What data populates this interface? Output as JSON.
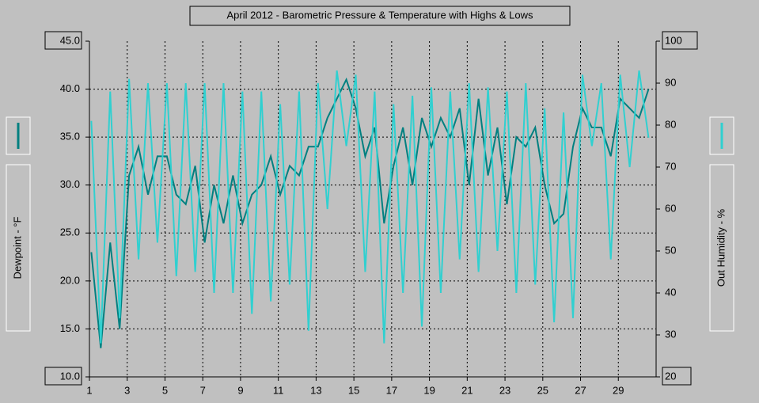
{
  "chart_data": {
    "type": "line",
    "title": "April 2012 - Barometric Pressure & Temperature with Highs & Lows",
    "ylabel": "Dewpoint - °F",
    "y2label": "Out Humidity - %",
    "xlim": [
      1,
      31
    ],
    "xticks": [
      1,
      3,
      5,
      7,
      9,
      11,
      13,
      15,
      17,
      19,
      21,
      23,
      25,
      27,
      29
    ],
    "ylim": [
      10,
      45
    ],
    "yticks": [
      {
        "value": 10,
        "label": "10.0"
      },
      {
        "value": 15,
        "label": "15.0"
      },
      {
        "value": 20,
        "label": "20.0"
      },
      {
        "value": 25,
        "label": "25.0"
      },
      {
        "value": 30,
        "label": "30.0"
      },
      {
        "value": 35,
        "label": "35.0"
      },
      {
        "value": 40,
        "label": "40.0"
      },
      {
        "value": 45,
        "label": "45.0"
      }
    ],
    "y2lim": [
      20,
      100
    ],
    "y2ticks": [
      20,
      30,
      40,
      50,
      60,
      70,
      80,
      90,
      100
    ],
    "grid": true,
    "x": [
      1.1,
      1.6,
      2.1,
      2.6,
      3.1,
      3.6,
      4.1,
      4.6,
      5.1,
      5.6,
      6.1,
      6.6,
      7.1,
      7.6,
      8.1,
      8.6,
      9.1,
      9.6,
      10.1,
      10.6,
      11.1,
      11.6,
      12.1,
      12.6,
      13.1,
      13.6,
      14.1,
      14.6,
      15.1,
      15.6,
      16.1,
      16.6,
      17.1,
      17.6,
      18.1,
      18.6,
      19.1,
      19.6,
      20.1,
      20.6,
      21.1,
      21.6,
      22.1,
      22.6,
      23.1,
      23.6,
      24.1,
      24.6,
      25.1,
      25.6,
      26.1,
      26.6,
      27.1,
      27.6,
      28.1,
      28.6,
      29.1,
      29.6,
      30.1,
      30.6
    ],
    "series": [
      {
        "color": "#008080",
        "values": [
          23,
          13,
          24,
          15,
          31,
          34,
          29,
          33,
          33,
          29,
          28,
          32,
          24,
          30,
          26,
          31,
          26,
          29,
          30,
          33,
          29,
          32,
          31,
          34,
          34,
          37,
          39,
          41,
          38,
          33,
          36,
          26,
          32,
          36,
          30,
          37,
          34,
          37,
          35,
          38,
          30,
          39,
          31,
          36,
          28,
          35,
          34,
          36,
          30,
          26,
          27,
          34,
          38,
          36,
          36,
          33,
          39,
          38,
          37,
          40
        ]
      },
      {
        "color": "#30d0d0",
        "axis": "y2",
        "values": [
          81,
          28,
          88,
          34,
          91,
          48,
          90,
          52,
          90,
          44,
          90,
          45,
          90,
          40,
          90,
          40,
          88,
          35,
          88,
          38,
          85,
          42,
          88,
          31,
          90,
          60,
          93,
          75,
          92,
          45,
          88,
          28,
          85,
          40,
          87,
          32,
          89,
          40,
          88,
          48,
          90,
          45,
          89,
          50,
          88,
          40,
          90,
          42,
          84,
          33,
          83,
          34,
          92,
          75,
          90,
          48,
          92,
          70,
          93,
          77
        ]
      }
    ]
  }
}
